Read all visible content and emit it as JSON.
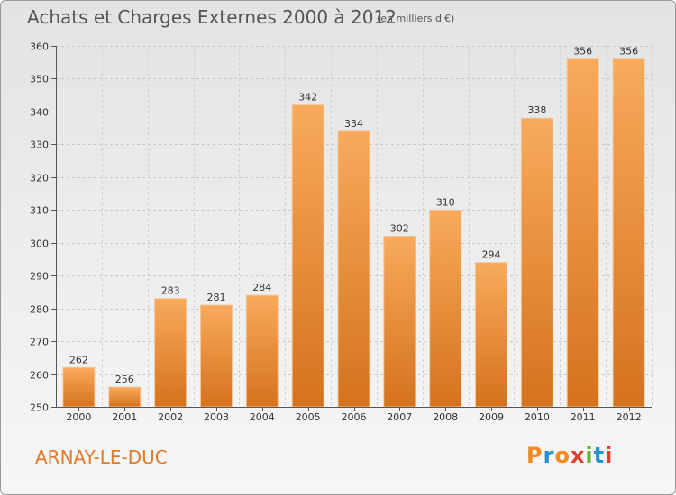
{
  "header": {
    "title": "Achats et Charges Externes 2000 à 2012",
    "subtitle": "(en milliers d'€)"
  },
  "footer": {
    "commune": "ARNAY-LE-DUC",
    "logo_text": "Proxiti",
    "logo_colors": [
      "#f08a24",
      "#2a8fd0",
      "#f08a24",
      "#e23b2e",
      "#6cb33e",
      "#2a8fd0",
      "#e23b2e"
    ]
  },
  "colors": {
    "bar_light": "#f7a85a",
    "bar_dark": "#d97720",
    "accent": "#e07a2a"
  },
  "chart_data": {
    "type": "bar",
    "title": "Achats et Charges Externes 2000 à 2012",
    "subtitle": "(en milliers d'€)",
    "xlabel": "",
    "ylabel": "",
    "categories": [
      "2000",
      "2001",
      "2002",
      "2003",
      "2004",
      "2005",
      "2006",
      "2007",
      "2008",
      "2009",
      "2010",
      "2011",
      "2012"
    ],
    "values": [
      262,
      256,
      283,
      281,
      284,
      342,
      334,
      302,
      310,
      294,
      338,
      356,
      356
    ],
    "ylim": [
      250,
      360
    ],
    "yticks": [
      250,
      260,
      270,
      280,
      290,
      300,
      310,
      320,
      330,
      340,
      350,
      360
    ],
    "grid": true,
    "data_labels": true
  }
}
